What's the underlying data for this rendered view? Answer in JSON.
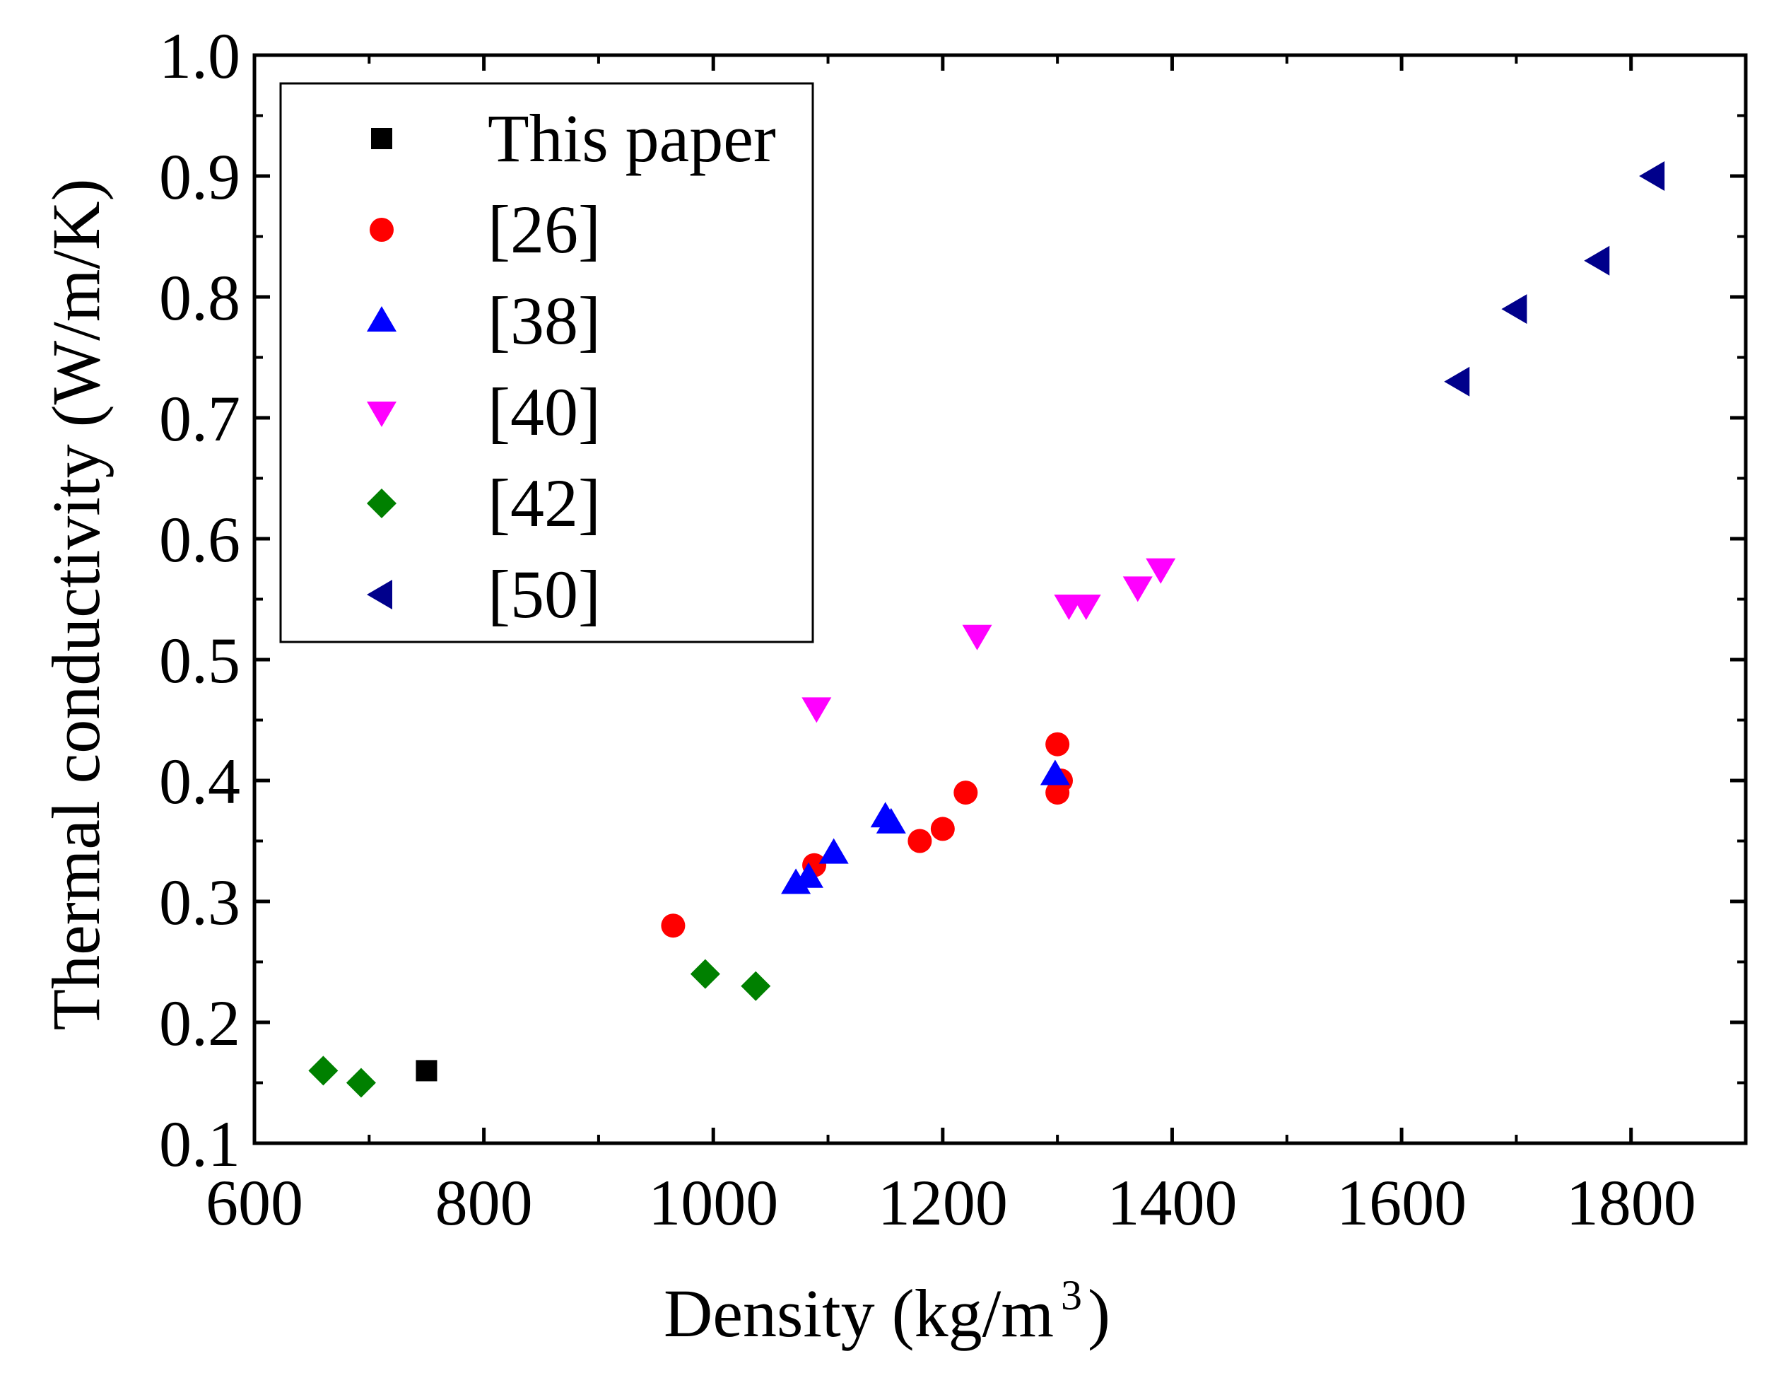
{
  "chart_data": {
    "type": "scatter",
    "title": "",
    "xlabel": "Density (kg/m",
    "xlabel_sup": "3",
    "xlabel_close": ")",
    "ylabel": "Thermal conductivity (W/m/K)",
    "xlim": [
      600,
      1900
    ],
    "ylim": [
      0.1,
      1.0
    ],
    "xticks": [
      600,
      800,
      1000,
      1200,
      1400,
      1600,
      1800
    ],
    "xtick_labels": [
      "600",
      "800",
      "1000",
      "1200",
      "1400",
      "1600",
      "1800"
    ],
    "yticks": [
      0.1,
      0.2,
      0.3,
      0.4,
      0.5,
      0.6,
      0.7,
      0.8,
      0.9,
      1.0
    ],
    "ytick_labels": [
      "0.1",
      "0.2",
      "0.3",
      "0.4",
      "0.5",
      "0.6",
      "0.7",
      "0.8",
      "0.9",
      "1.0"
    ],
    "legend_position": "top-left",
    "series": [
      {
        "name": "This paper",
        "marker": "square",
        "color": "#000000",
        "x": [
          750
        ],
        "y": [
          0.16
        ]
      },
      {
        "name": "[26]",
        "marker": "circle",
        "color": "#ff0000",
        "x": [
          965,
          1088,
          1180,
          1200,
          1220,
          1300,
          1303,
          1300
        ],
        "y": [
          0.28,
          0.33,
          0.35,
          0.36,
          0.39,
          0.43,
          0.4,
          0.39
        ]
      },
      {
        "name": "[38]",
        "marker": "triangle-up",
        "color": "#0000ff",
        "x": [
          1072,
          1083,
          1105,
          1150,
          1155,
          1298
        ],
        "y": [
          0.315,
          0.32,
          0.34,
          0.37,
          0.365,
          0.405
        ]
      },
      {
        "name": "[40]",
        "marker": "triangle-down",
        "color": "#ff00ff",
        "x": [
          1090,
          1230,
          1310,
          1325,
          1370,
          1390
        ],
        "y": [
          0.46,
          0.52,
          0.545,
          0.545,
          0.56,
          0.575
        ]
      },
      {
        "name": "[42]",
        "marker": "diamond",
        "color": "#008000",
        "x": [
          660,
          693,
          993,
          1037
        ],
        "y": [
          0.16,
          0.15,
          0.24,
          0.23
        ]
      },
      {
        "name": "[50]",
        "marker": "triangle-left",
        "color": "#00008b",
        "x": [
          1650,
          1700,
          1772,
          1820
        ],
        "y": [
          0.73,
          0.79,
          0.83,
          0.9
        ]
      }
    ]
  }
}
